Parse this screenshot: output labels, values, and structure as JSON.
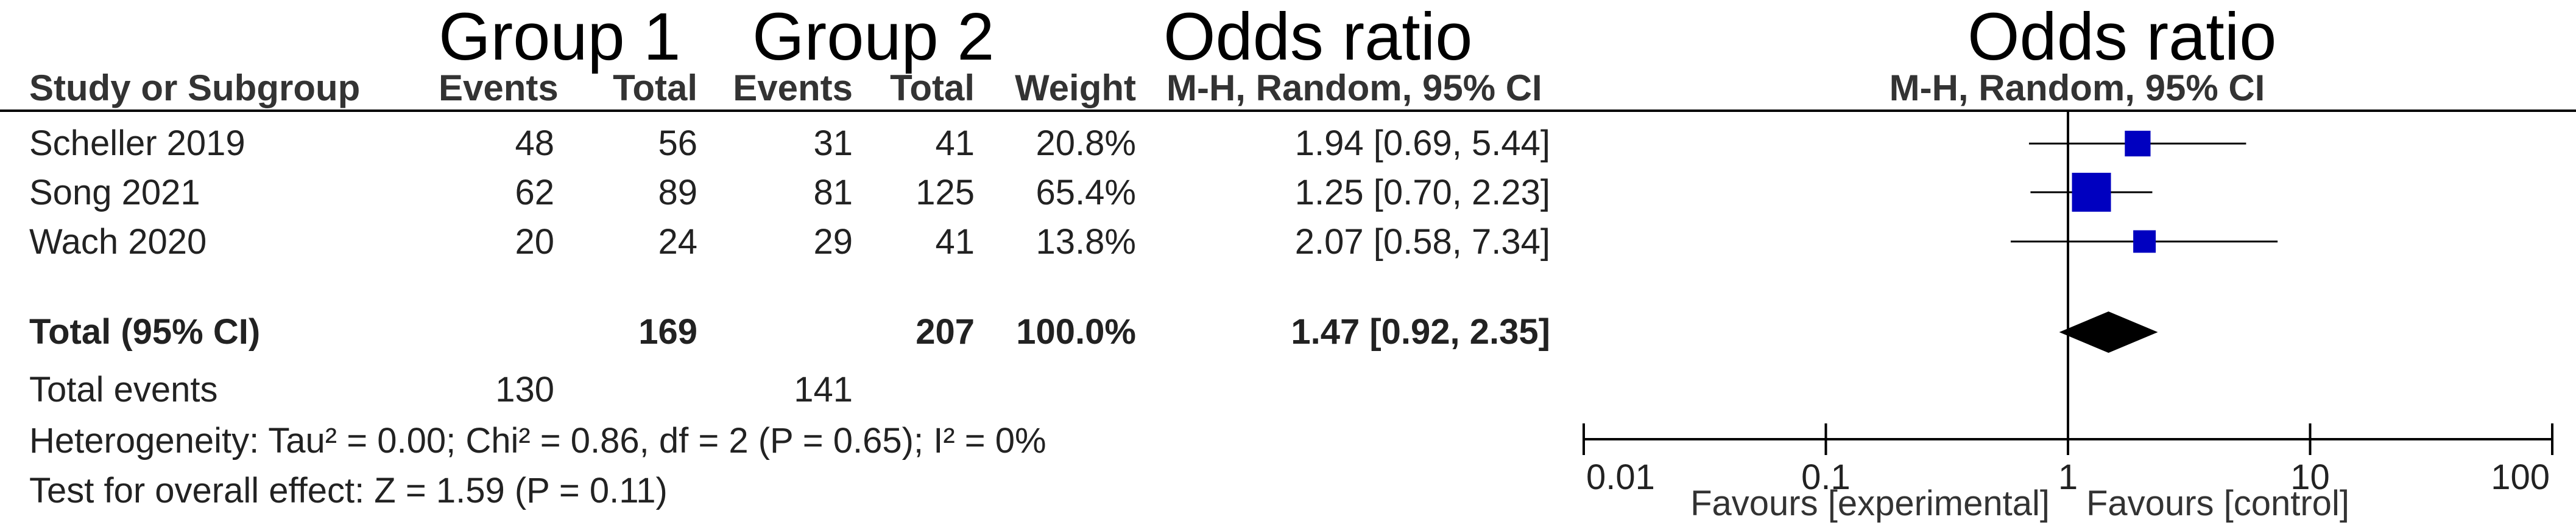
{
  "group_headers": {
    "group1": "Group 1",
    "group2": "Group 2",
    "or_left": "Odds ratio",
    "or_right": "Odds ratio"
  },
  "columns": {
    "study": "Study or Subgroup",
    "events1": "Events",
    "total1": "Total",
    "events2": "Events",
    "total2": "Total",
    "weight": "Weight",
    "method_left": "M-H, Random, 95% CI",
    "method_right": "M-H, Random, 95% CI"
  },
  "studies": [
    {
      "name": "Scheller 2019",
      "events1": "48",
      "total1": "56",
      "events2": "31",
      "total2": "41",
      "weight": "20.8%",
      "ci": "1.94 [0.69, 5.44]"
    },
    {
      "name": "Song 2021",
      "events1": "62",
      "total1": "89",
      "events2": "81",
      "total2": "125",
      "weight": "65.4%",
      "ci": "1.25 [0.70, 2.23]"
    },
    {
      "name": "Wach 2020",
      "events1": "20",
      "total1": "24",
      "events2": "29",
      "total2": "41",
      "weight": "13.8%",
      "ci": "2.07 [0.58, 7.34]"
    }
  ],
  "total": {
    "label": "Total (95% CI)",
    "total1": "169",
    "total2": "207",
    "weight": "100.0%",
    "ci": "1.47 [0.92, 2.35]"
  },
  "total_events": {
    "label": "Total events",
    "events1": "130",
    "events2": "141"
  },
  "heterogeneity": "Heterogeneity: Tau² = 0.00; Chi² = 0.86, df = 2 (P = 0.65); I² = 0%",
  "overall_effect": "Test for overall effect: Z = 1.59 (P = 0.11)",
  "favours_left": "Favours [experimental]",
  "favours_right": "Favours [control]",
  "colors": {
    "marker": "#0000c0",
    "diamond": "#000000",
    "line": "#000000"
  },
  "chart_data": {
    "type": "forest",
    "x_scale": "log",
    "xlim": [
      0.01,
      100
    ],
    "x_ticks": [
      "0.01",
      "0.1",
      "1",
      "10",
      "100"
    ],
    "reference_line": 1,
    "studies": [
      {
        "name": "Scheller 2019",
        "or": 1.94,
        "lower": 0.69,
        "upper": 5.44,
        "weight": 20.8
      },
      {
        "name": "Song 2021",
        "or": 1.25,
        "lower": 0.7,
        "upper": 2.23,
        "weight": 65.4
      },
      {
        "name": "Wach 2020",
        "or": 2.07,
        "lower": 0.58,
        "upper": 7.34,
        "weight": 13.8
      }
    ],
    "pooled": {
      "or": 1.47,
      "lower": 0.92,
      "upper": 2.35
    }
  }
}
